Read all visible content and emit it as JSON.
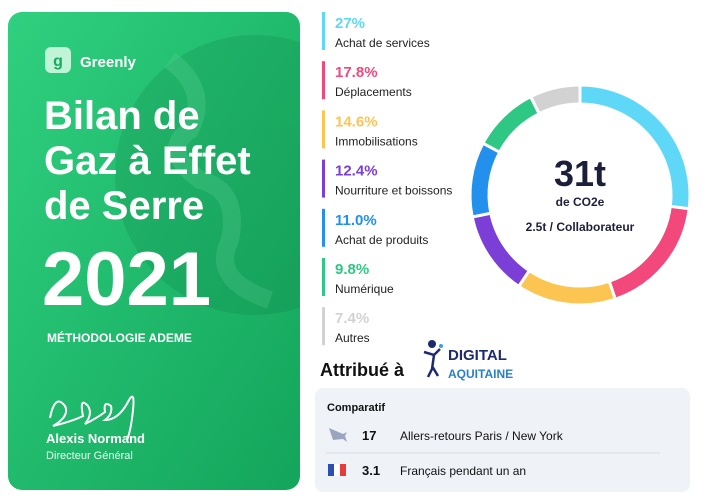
{
  "brand": "Greenly",
  "title_lines": [
    "Bilan de",
    "Gaz à Effet",
    "de Serre"
  ],
  "year": "2021",
  "methodology": "MÉTHODOLOGIE ADEME",
  "signatory": {
    "name": "Alexis Normand",
    "role": "Directeur Général"
  },
  "awarded": {
    "label": "Attribué à",
    "org_line1": "DIGITAL",
    "org_line2": "AQUITAINE"
  },
  "comparison": {
    "title": "Comparatif",
    "rows": [
      [
        "17",
        "Allers-retours Paris / New York"
      ],
      [
        "3.1",
        "Français pendant un an"
      ]
    ]
  },
  "chart_data": {
    "type": "donut",
    "center_value": "31t",
    "center_unit": "de CO2e",
    "center_note": "2.5t / Collaborateur",
    "categories": [
      "Achat de services",
      "Déplacements",
      "Immobilisations",
      "Nourriture et boissons",
      "Achat de produits",
      "Numérique",
      "Autres"
    ],
    "values": [
      27,
      17.8,
      14.6,
      12.4,
      11.0,
      9.8,
      7.4
    ],
    "value_labels": [
      "27%",
      "17.8%",
      "14.6%",
      "12.4%",
      "11.0%",
      "9.8%",
      "7.4%"
    ],
    "colors": [
      "#5fd7f7",
      "#f2487c",
      "#fcc451",
      "#7b3fd8",
      "#2290ec",
      "#2ec884",
      "#d2d2d2"
    ]
  }
}
